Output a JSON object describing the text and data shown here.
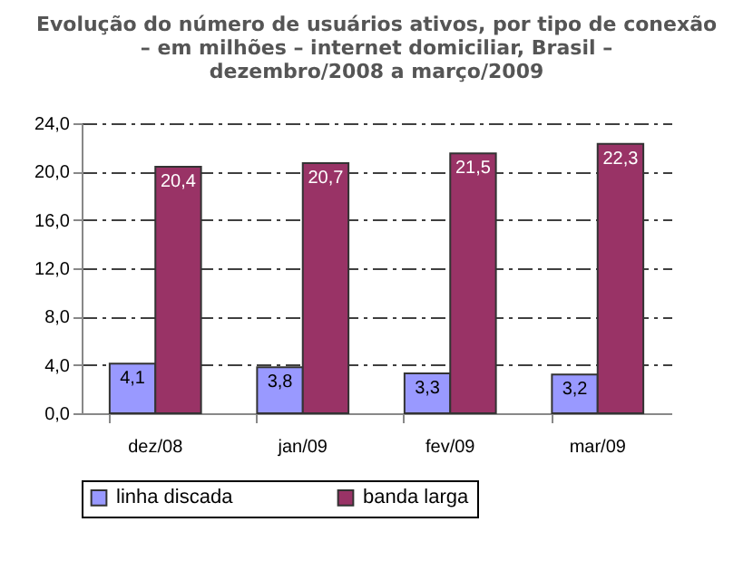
{
  "chart_data": {
    "type": "bar",
    "title": "Evolução do número de usuários ativos, por tipo de conexão\n– em milhões – internet domiciliar, Brasil –\ndezembro/2008    a março/2009",
    "categories": [
      "dez/08",
      "jan/09",
      "fev/09",
      "mar/09"
    ],
    "series": [
      {
        "name": "linha discada",
        "color": "#9999ff",
        "values": [
          4.1,
          3.8,
          3.3,
          3.2
        ],
        "value_labels": [
          "4,1",
          "3,8",
          "3,3",
          "3,2"
        ]
      },
      {
        "name": "banda larga",
        "color": "#993366",
        "values": [
          20.4,
          20.7,
          21.5,
          22.3
        ],
        "value_labels": [
          "20,4",
          "20,7",
          "21,5",
          "22,3"
        ]
      }
    ],
    "ylim": [
      0,
      24
    ],
    "yticks": [
      {
        "value": 0,
        "label": "0,0"
      },
      {
        "value": 4,
        "label": "4,0"
      },
      {
        "value": 8,
        "label": "8,0"
      },
      {
        "value": 12,
        "label": "12,0"
      },
      {
        "value": 16,
        "label": "16,0"
      },
      {
        "value": 20,
        "label": "20,0"
      },
      {
        "value": 24,
        "label": "24,0"
      }
    ],
    "grid": "y",
    "legend": "bottom"
  }
}
